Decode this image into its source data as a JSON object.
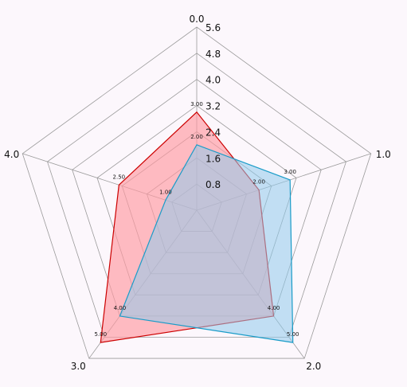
{
  "chart_data": {
    "type": "radar",
    "axes": [
      "0.0",
      "1.0",
      "2.0",
      "3.0",
      "4.0"
    ],
    "ticks": [
      "0.8",
      "1.6",
      "2.4",
      "3.2",
      "4.0",
      "4.8",
      "5.6"
    ],
    "rmax": 5.6,
    "grid": true,
    "series": [
      {
        "values": [
          3.0,
          2.0,
          4.0,
          5.0,
          2.5
        ],
        "labels": [
          "3.00",
          "2.00",
          "4.00",
          "5.00",
          "2.50"
        ],
        "stroke": "#cc0000",
        "fill": "#ff9aa2"
      },
      {
        "values": [
          2.0,
          3.0,
          5.0,
          4.0,
          1.0
        ],
        "labels": [
          "2.00",
          "3.00",
          "5.00",
          "4.00",
          "1.00"
        ],
        "stroke": "#1a9cc8",
        "fill": "#8fcbeb"
      }
    ]
  }
}
